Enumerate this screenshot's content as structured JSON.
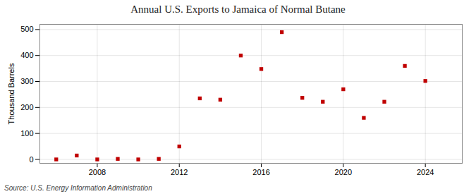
{
  "chart_data": {
    "type": "scatter",
    "title": "Annual U.S. Exports to Jamaica of Normal Butane",
    "ylabel": "Thousand Barrels",
    "source": "Source: U.S. Energy Information Administration",
    "x": [
      2006,
      2007,
      2008,
      2009,
      2010,
      2011,
      2012,
      2013,
      2014,
      2015,
      2016,
      2017,
      2018,
      2019,
      2020,
      2021,
      2022,
      2023,
      2024
    ],
    "values": [
      0,
      15,
      0,
      2,
      0,
      2,
      50,
      235,
      230,
      400,
      348,
      490,
      237,
      222,
      270,
      160,
      222,
      360,
      302
    ],
    "color": "#c00000",
    "marker": "square",
    "xlim": [
      2005.2,
      2025.8
    ],
    "xticks": [
      2008,
      2012,
      2016,
      2020,
      2024
    ],
    "ylim": [
      -15,
      520
    ],
    "yticks": [
      0,
      100,
      200,
      300,
      400,
      500
    ],
    "grid": true
  }
}
